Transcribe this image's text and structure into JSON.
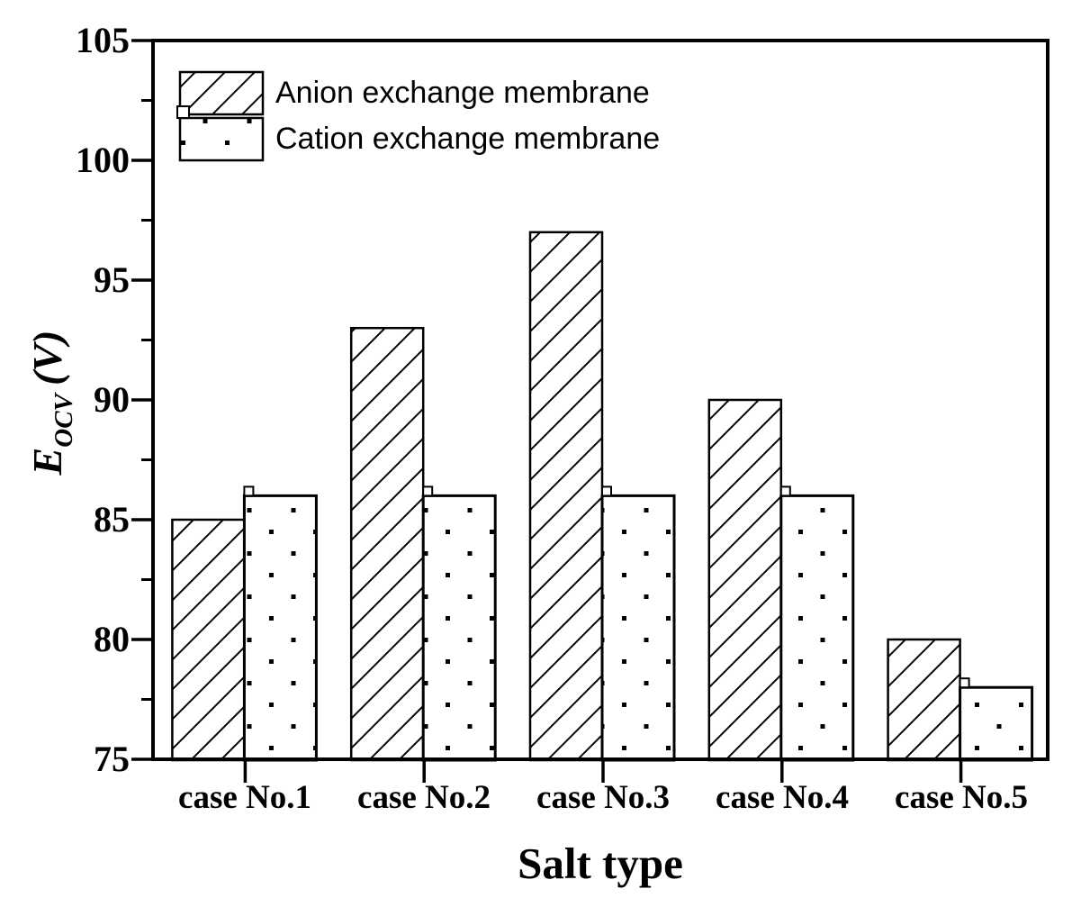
{
  "chart_data": {
    "type": "bar",
    "title": "",
    "xlabel": "Salt type",
    "ylabel": "E_OCV (V)",
    "ylabel_parts": {
      "symbol": "E",
      "subscript": "OCV",
      "unit": "(V)"
    },
    "categories": [
      "case No.1",
      "case No.2",
      "case No.3",
      "case No.4",
      "case No.5"
    ],
    "series": [
      {
        "name": "Anion exchange membrane",
        "pattern": "diagonal-hatch",
        "values": [
          85,
          93,
          97,
          90,
          80
        ]
      },
      {
        "name": "Cation exchange membrane",
        "pattern": "dots",
        "values": [
          86,
          86,
          86,
          86,
          78
        ],
        "upper_error": [
          0.35,
          0.35,
          0.35,
          0.35,
          0.35
        ]
      }
    ],
    "ylim": [
      75,
      105
    ],
    "ytick_step": 5,
    "yminor_step": 2.5,
    "grid": false,
    "legend_position": "top-left",
    "colors": {
      "foreground": "#000000",
      "background": "#ffffff"
    }
  }
}
